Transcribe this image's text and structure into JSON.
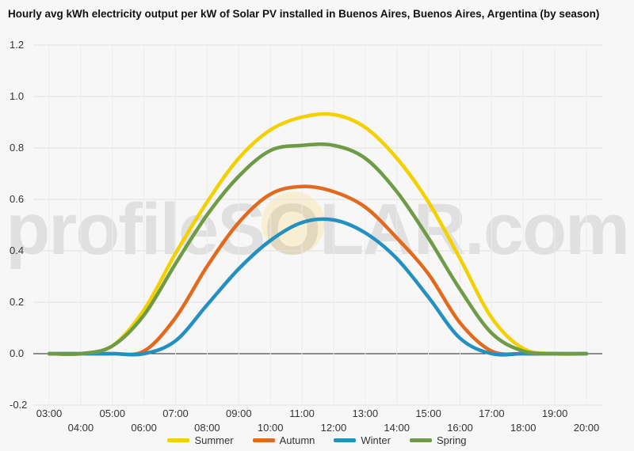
{
  "chart_data": {
    "type": "line",
    "title": "Hourly avg kWh electricity output per kW of Solar PV installed in Buenos Aires, Buenos Aires, Argentina (by season)",
    "watermark": "profileSOLAR.com",
    "xlabel": "",
    "ylabel": "",
    "x": [
      "03:00",
      "04:00",
      "05:00",
      "06:00",
      "07:00",
      "08:00",
      "09:00",
      "10:00",
      "11:00",
      "12:00",
      "13:00",
      "14:00",
      "15:00",
      "16:00",
      "17:00",
      "18:00",
      "19:00",
      "20:00"
    ],
    "ylim": [
      -0.2,
      1.2
    ],
    "yticks": [
      "1.2",
      "1.0",
      "0.8",
      "0.6",
      "0.4",
      "0.2",
      "0.0",
      "-0.2"
    ],
    "legend_position": "bottom",
    "grid": true,
    "series": [
      {
        "name": "Summer",
        "color": "#f5d000",
        "values": [
          0,
          0,
          0.03,
          0.17,
          0.39,
          0.59,
          0.76,
          0.87,
          0.92,
          0.93,
          0.88,
          0.76,
          0.59,
          0.37,
          0.14,
          0.02,
          0,
          0
        ]
      },
      {
        "name": "Autumn",
        "color": "#e16a1e",
        "values": [
          0,
          0,
          0,
          0.01,
          0.14,
          0.34,
          0.51,
          0.62,
          0.65,
          0.63,
          0.57,
          0.45,
          0.31,
          0.12,
          0.01,
          0,
          0,
          0
        ]
      },
      {
        "name": "Winter",
        "color": "#2490c2",
        "values": [
          0,
          0,
          0,
          0,
          0.05,
          0.19,
          0.33,
          0.44,
          0.51,
          0.52,
          0.47,
          0.37,
          0.22,
          0.06,
          0,
          0,
          0,
          0
        ]
      },
      {
        "name": "Spring",
        "color": "#6e9b46",
        "values": [
          0,
          0,
          0.03,
          0.15,
          0.35,
          0.54,
          0.69,
          0.79,
          0.81,
          0.81,
          0.76,
          0.63,
          0.45,
          0.25,
          0.08,
          0.01,
          0,
          0
        ]
      }
    ]
  }
}
